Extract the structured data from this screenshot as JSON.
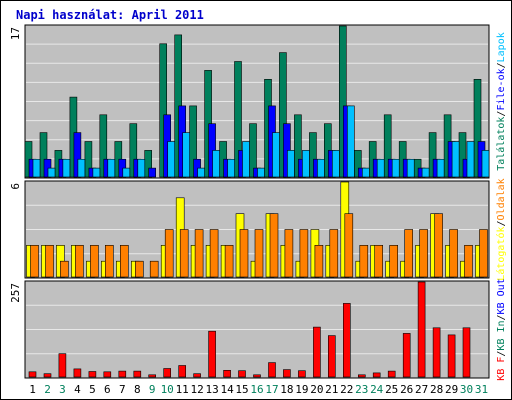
{
  "title": "Napi használat: April 2011",
  "colors": {
    "title": "#0000cc",
    "frame_bg": "#ffffff",
    "panel_bg": "#c0c0c0",
    "grid": "#e8e8e8",
    "hits": "#00805c",
    "files": "#0000ff",
    "pages": "#00c0ff",
    "visits": "#ffff00",
    "sites": "#ff8000",
    "kb_f": "#ff0000",
    "kb_in": "#00805c",
    "kb_out": "#0000ff",
    "weekend_day": "#00805c",
    "weekday": "#000000"
  },
  "chart_data": [
    {
      "type": "bar",
      "panel": "top",
      "ymax_label": "17",
      "right_labels": [
        {
          "text": "Találatok",
          "color": "#00805c"
        },
        {
          "text": "/",
          "color": "#000000"
        },
        {
          "text": "File-ok",
          "color": "#0000ff"
        },
        {
          "text": "/",
          "color": "#000000"
        },
        {
          "text": "Lapok",
          "color": "#00c0ff"
        }
      ],
      "categories": [
        "1",
        "2",
        "3",
        "4",
        "5",
        "6",
        "7",
        "8",
        "9",
        "10",
        "11",
        "12",
        "13",
        "14",
        "15",
        "16",
        "17",
        "18",
        "19",
        "20",
        "21",
        "22",
        "23",
        "24",
        "25",
        "26",
        "27",
        "28",
        "29",
        "30",
        "31"
      ],
      "ylim": [
        0,
        17
      ],
      "series": [
        {
          "name": "Találatok",
          "values": [
            4,
            5,
            3,
            9,
            4,
            7,
            4,
            6,
            3,
            15,
            16,
            8,
            12,
            4,
            13,
            6,
            11,
            14,
            7,
            5,
            6,
            17,
            3,
            4,
            7,
            4,
            2,
            5,
            7,
            5,
            11
          ]
        },
        {
          "name": "File-ok",
          "values": [
            2,
            2,
            2,
            5,
            1,
            2,
            2,
            2,
            1,
            7,
            8,
            2,
            6,
            2,
            3,
            1,
            8,
            6,
            2,
            2,
            3,
            8,
            1,
            2,
            2,
            2,
            1,
            2,
            4,
            2,
            4
          ]
        },
        {
          "name": "Lapok",
          "values": [
            2,
            1,
            2,
            2,
            1,
            2,
            1,
            2,
            0,
            4,
            5,
            1,
            3,
            2,
            4,
            1,
            5,
            3,
            3,
            2,
            3,
            8,
            1,
            2,
            2,
            2,
            1,
            2,
            4,
            4,
            3
          ]
        }
      ]
    },
    {
      "type": "bar",
      "panel": "middle",
      "ymax_label": "6",
      "right_labels": [
        {
          "text": "Látogatók",
          "color": "#ffff00"
        },
        {
          "text": "/",
          "color": "#000000"
        },
        {
          "text": "Oldalak",
          "color": "#ff8000"
        }
      ],
      "categories": [
        "1",
        "2",
        "3",
        "4",
        "5",
        "6",
        "7",
        "8",
        "9",
        "10",
        "11",
        "12",
        "13",
        "14",
        "15",
        "16",
        "17",
        "18",
        "19",
        "20",
        "21",
        "22",
        "23",
        "24",
        "25",
        "26",
        "27",
        "28",
        "29",
        "30",
        "31"
      ],
      "ylim": [
        0,
        6
      ],
      "series": [
        {
          "name": "Látogatók",
          "values": [
            2,
            2,
            2,
            2,
            1,
            1,
            1,
            1,
            0,
            2,
            5,
            2,
            2,
            2,
            4,
            1,
            4,
            2,
            1,
            3,
            2,
            6,
            1,
            2,
            1,
            1,
            2,
            4,
            2,
            1,
            2
          ]
        },
        {
          "name": "Oldalak",
          "values": [
            2,
            2,
            1,
            2,
            2,
            2,
            2,
            1,
            1,
            3,
            3,
            3,
            3,
            2,
            3,
            3,
            4,
            3,
            3,
            2,
            3,
            4,
            2,
            2,
            2,
            3,
            3,
            4,
            3,
            2,
            3
          ]
        }
      ]
    },
    {
      "type": "bar",
      "panel": "bottom",
      "ymax_label": "257",
      "right_labels": [
        {
          "text": "KB F",
          "color": "#ff0000"
        },
        {
          "text": "/",
          "color": "#000000"
        },
        {
          "text": "KB In",
          "color": "#00805c"
        },
        {
          "text": "/",
          "color": "#000000"
        },
        {
          "text": "KB Out",
          "color": "#0000ff"
        }
      ],
      "categories": [
        "1",
        "2",
        "3",
        "4",
        "5",
        "6",
        "7",
        "8",
        "9",
        "10",
        "11",
        "12",
        "13",
        "14",
        "15",
        "16",
        "17",
        "18",
        "19",
        "20",
        "21",
        "22",
        "23",
        "24",
        "25",
        "26",
        "27",
        "28",
        "29",
        "30",
        "31"
      ],
      "ylim": [
        0,
        257
      ],
      "series": [
        {
          "name": "KB F",
          "values": [
            14,
            9,
            63,
            22,
            15,
            14,
            16,
            16,
            6,
            23,
            31,
            9,
            124,
            18,
            17,
            6,
            39,
            20,
            17,
            135,
            112,
            199,
            6,
            11,
            16,
            118,
            257,
            133,
            114,
            133,
            0
          ]
        }
      ]
    }
  ],
  "weekend_days": [
    "2",
    "3",
    "9",
    "10",
    "16",
    "17",
    "23",
    "24",
    "30",
    "31"
  ]
}
